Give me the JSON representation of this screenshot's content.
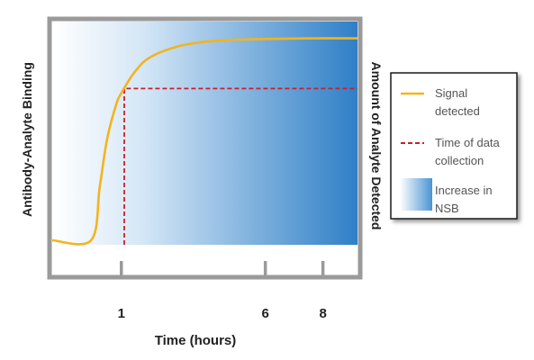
{
  "chart_data": {
    "type": "line",
    "title": "",
    "xlabel": "Time (hours)",
    "ylabel_left": "Antibody-Analyte Binding",
    "ylabel_right": "Amount of Analyte Detected",
    "xticks": [
      1,
      6,
      8
    ],
    "xlim": [
      -1.4,
      9.2
    ],
    "ylim": [
      0,
      1
    ],
    "grid": false,
    "legend_position": "right",
    "series": [
      {
        "name": "Signal detected",
        "color": "#f2b41e",
        "points": [
          [
            -1.4,
            0.02
          ],
          [
            -0.05,
            0.02
          ],
          [
            0.25,
            0.26
          ],
          [
            0.5,
            0.47
          ],
          [
            0.8,
            0.62
          ],
          [
            1.0,
            0.68
          ],
          [
            1.5,
            0.78
          ],
          [
            2.0,
            0.84
          ],
          [
            3.0,
            0.89
          ],
          [
            4.0,
            0.911
          ],
          [
            5.0,
            0.919
          ],
          [
            6.0,
            0.922
          ],
          [
            7.0,
            0.924
          ],
          [
            8.0,
            0.925
          ],
          [
            9.2,
            0.925
          ]
        ]
      },
      {
        "name": "Time of data collection",
        "color": "#c8202a",
        "style": "dashed",
        "points": [
          [
            1.1,
            0.0
          ],
          [
            1.1,
            0.7
          ],
          [
            9.2,
            0.7
          ]
        ]
      }
    ],
    "legend": [
      {
        "kind": "line",
        "lines": [
          "Signal",
          "detected"
        ],
        "color": "#f2b41e"
      },
      {
        "kind": "dashed",
        "lines": [
          "Time of data",
          "collection"
        ],
        "color": "#c8202a"
      },
      {
        "kind": "gradient",
        "lines": [
          "Increase in",
          "NSB"
        ],
        "color": "#2f7fc7"
      }
    ],
    "shading": {
      "name": "Increase in NSB",
      "from_color": "#ffffff",
      "to_color": "#2f7fc7"
    }
  }
}
